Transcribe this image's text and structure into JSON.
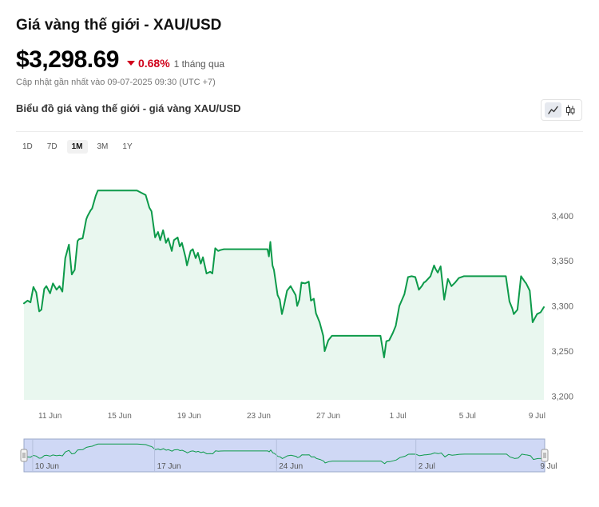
{
  "header": {
    "title": "Giá vàng thế giới - XAU/USD",
    "price": "$3,298.69",
    "change_pct": "0.68%",
    "change_period": "1 tháng qua",
    "updated": "Cập nhật gần nhất vào 09-07-2025 09:30 (UTC +7)",
    "chart_title": "Biểu đồ giá vàng thế giới - giá vàng XAU/USD",
    "down_color": "#d0021b"
  },
  "toolbar": {
    "chart_types": [
      "line-chart-icon",
      "candlestick-icon"
    ],
    "active_type": "line-chart-icon",
    "ranges": [
      "1D",
      "7D",
      "1M",
      "3M",
      "1Y"
    ],
    "active_range": "1M"
  },
  "navigator": {
    "labels": [
      "10 Jun",
      "17 Jun",
      "24 Jun",
      "2 Jul",
      "9 Jul"
    ]
  },
  "chart_data": {
    "type": "area",
    "title": "",
    "xlabel": "",
    "ylabel": "",
    "x_tick_labels": [
      "11 Jun",
      "15 Jun",
      "19 Jun",
      "23 Jun",
      "27 Jun",
      "1 Jul",
      "5 Jul",
      "9 Jul"
    ],
    "y_tick_labels": [
      "3,200",
      "3,250",
      "3,300",
      "3,350",
      "3,400"
    ],
    "ylim": [
      3196,
      3453
    ],
    "xlim": [
      "2025-06-09T12:00",
      "2025-07-09T09:30"
    ],
    "grid": false,
    "line_color": "#0d9a4a",
    "fill_color": "#e9f7ef",
    "series": [
      {
        "x": [
          "2025-06-09T12:00",
          "2025-06-09T17:00",
          "2025-06-09T21:00",
          "2025-06-10T01:00",
          "2025-06-10T05:00",
          "2025-06-10T09:00",
          "2025-06-10T12:00",
          "2025-06-10T16:00",
          "2025-06-10T19:00",
          "2025-06-11T00:00",
          "2025-06-11T04:00",
          "2025-06-11T09:00",
          "2025-06-11T13:00",
          "2025-06-11T17:00",
          "2025-06-11T21:00",
          "2025-06-12T02:00",
          "2025-06-12T06:00",
          "2025-06-12T10:00",
          "2025-06-12T14:00",
          "2025-06-12T16:00",
          "2025-06-12T21:00",
          "2025-06-13T02:00",
          "2025-06-13T04:00",
          "2025-06-13T08:00",
          "2025-06-13T10:00",
          "2025-06-13T15:00",
          "2025-06-13T18:00",
          "2025-06-13T21:00",
          "2025-06-14T02:00",
          "2025-06-14T05:00",
          "2025-06-14T09:00",
          "2025-06-14T11:00",
          "2025-06-14T14:00",
          "2025-06-14T19:00",
          "2025-06-15T00:00",
          "2025-06-15T12:00",
          "2025-06-16T00:00",
          "2025-06-16T12:00",
          "2025-06-16T17:00",
          "2025-06-16T20:00",
          "2025-06-17T01:00",
          "2025-06-17T05:00",
          "2025-06-17T08:00",
          "2025-06-17T12:00",
          "2025-06-17T16:00",
          "2025-06-17T19:00",
          "2025-06-18T00:00",
          "2025-06-18T03:00",
          "2025-06-18T08:00",
          "2025-06-18T11:00",
          "2025-06-18T14:00",
          "2025-06-18T19:00",
          "2025-06-18T21:00",
          "2025-06-19T02:00",
          "2025-06-19T05:00",
          "2025-06-19T09:00",
          "2025-06-19T12:00",
          "2025-06-19T16:00",
          "2025-06-19T19:00",
          "2025-06-20T00:00",
          "2025-06-20T05:00",
          "2025-06-20T08:00",
          "2025-06-20T12:00",
          "2025-06-20T16:00",
          "2025-06-20T19:00",
          "2025-06-21T00:00",
          "2025-06-21T05:00",
          "2025-06-21T09:00",
          "2025-06-22T12:00",
          "2025-06-23T12:00",
          "2025-06-23T14:00",
          "2025-06-23T16:00",
          "2025-06-23T19:00",
          "2025-06-23T21:00",
          "2025-06-24T02:00",
          "2025-06-24T05:00",
          "2025-06-24T08:00",
          "2025-06-24T11:00",
          "2025-06-24T15:00",
          "2025-06-24T20:00",
          "2025-06-25T03:00",
          "2025-06-25T05:00",
          "2025-06-25T08:00",
          "2025-06-25T11:00",
          "2025-06-25T16:00",
          "2025-06-25T21:00",
          "2025-06-26T00:00",
          "2025-06-26T04:00",
          "2025-06-26T07:00",
          "2025-06-26T12:00",
          "2025-06-26T17:00",
          "2025-06-26T19:00",
          "2025-06-27T00:00",
          "2025-06-27T05:00",
          "2025-06-27T10:00",
          "2025-06-27T15:00",
          "2025-06-27T18:00",
          "2025-06-28T12:00",
          "2025-06-29T12:00",
          "2025-06-30T00:00",
          "2025-06-30T05:00",
          "2025-06-30T08:00",
          "2025-06-30T12:00",
          "2025-06-30T17:00",
          "2025-06-30T21:00",
          "2025-07-01T02:00",
          "2025-07-01T09:00",
          "2025-07-01T14:00",
          "2025-07-01T19:00",
          "2025-07-02T00:00",
          "2025-07-02T05:00",
          "2025-07-02T09:00",
          "2025-07-02T12:00",
          "2025-07-02T14:00",
          "2025-07-02T21:00",
          "2025-07-03T02:00",
          "2025-07-03T04:00",
          "2025-07-03T07:00",
          "2025-07-03T11:00",
          "2025-07-03T16:00",
          "2025-07-03T21:00",
          "2025-07-04T02:00",
          "2025-07-04T07:00",
          "2025-07-04T12:00",
          "2025-07-04T19:00",
          "2025-07-05T12:00",
          "2025-07-06T12:00",
          "2025-07-07T00:00",
          "2025-07-07T02:00",
          "2025-07-07T05:00",
          "2025-07-07T10:00",
          "2025-07-07T14:00",
          "2025-07-07T16:00",
          "2025-07-07T21:00",
          "2025-07-08T02:00",
          "2025-07-08T07:00",
          "2025-07-08T09:00",
          "2025-07-08T14:00",
          "2025-07-08T18:00",
          "2025-07-09T00:00",
          "2025-07-09T05:00",
          "2025-07-09T09:30"
        ],
        "y": [
          3303,
          3306,
          3304,
          3321,
          3315,
          3294,
          3296,
          3319,
          3322,
          3314,
          3325,
          3318,
          3322,
          3316,
          3353,
          3368,
          3335,
          3340,
          3372,
          3374,
          3375,
          3396,
          3400,
          3406,
          3408,
          3422,
          3428,
          3428,
          3428,
          3428,
          3428,
          3428,
          3428,
          3428,
          3428,
          3428,
          3428,
          3423,
          3409,
          3405,
          3376,
          3382,
          3373,
          3384,
          3370,
          3375,
          3361,
          3373,
          3376,
          3366,
          3370,
          3354,
          3345,
          3361,
          3363,
          3353,
          3359,
          3347,
          3354,
          3336,
          3338,
          3336,
          3364,
          3361,
          3362,
          3363,
          3363,
          3363,
          3363,
          3363,
          3355,
          3371,
          3345,
          3340,
          3312,
          3307,
          3291,
          3301,
          3317,
          3322,
          3312,
          3300,
          3307,
          3326,
          3325,
          3327,
          3306,
          3308,
          3292,
          3282,
          3267,
          3250,
          3262,
          3267,
          3267,
          3267,
          3267,
          3267,
          3267,
          3267,
          3243,
          3261,
          3262,
          3270,
          3278,
          3300,
          3313,
          3332,
          3333,
          3332,
          3318,
          3322,
          3326,
          3327,
          3333,
          3345,
          3341,
          3337,
          3344,
          3307,
          3330,
          3322,
          3326,
          3331,
          3333,
          3333,
          3333,
          3333,
          3333,
          3333,
          3305,
          3297,
          3291,
          3296,
          3333,
          3327,
          3325,
          3317,
          3282,
          3291,
          3293,
          3298.69
        ]
      }
    ]
  }
}
